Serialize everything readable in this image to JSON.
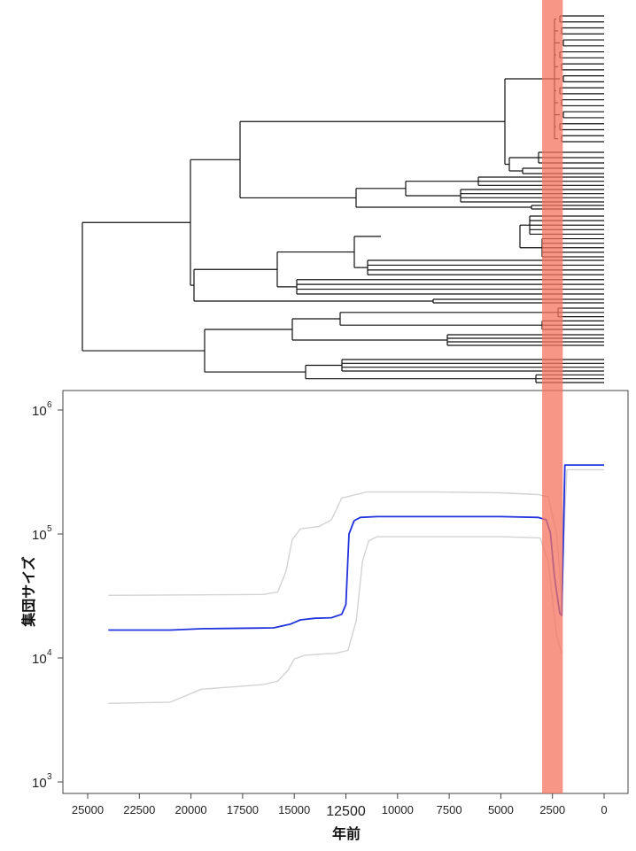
{
  "chart_data": [
    {
      "type": "tree",
      "description_free": true,
      "tips": 52
    },
    {
      "type": "line",
      "xlabel": "年前",
      "ylabel": "集団サイズ",
      "xlim": [
        26000,
        -1000
      ],
      "ylim": [
        1000,
        1000000
      ],
      "yscale": "log",
      "xticks": [
        {
          "value": 25000,
          "label": "25000"
        },
        {
          "value": 22500,
          "label": "22500"
        },
        {
          "value": 20000,
          "label": "20000"
        },
        {
          "value": 17500,
          "label": "17500"
        },
        {
          "value": 15000,
          "label": "15000"
        },
        {
          "value": 12500,
          "label": "12500"
        },
        {
          "value": 10000,
          "label": "10000"
        },
        {
          "value": 7500,
          "label": "7500"
        },
        {
          "value": 5000,
          "label": "5000"
        },
        {
          "value": 2500,
          "label": "2500"
        },
        {
          "value": 0,
          "label": "0"
        }
      ],
      "yticks": [
        {
          "value": 1000,
          "base": "10",
          "exp": "3"
        },
        {
          "value": 10000,
          "base": "10",
          "exp": "4"
        },
        {
          "value": 100000,
          "base": "10",
          "exp": "5"
        },
        {
          "value": 1000000,
          "base": "10",
          "exp": "6"
        }
      ],
      "highlight_band": {
        "from": 3000,
        "to": 2000,
        "color": "#f4735f"
      },
      "series": [
        {
          "role": "median",
          "color": "#2233dd",
          "x": [
            24000,
            21000,
            19500,
            17000,
            16000,
            15200,
            14700,
            14000,
            13200,
            12700,
            12500,
            12350,
            12100,
            11800,
            11000,
            8000,
            5000,
            3200,
            2800,
            2600,
            2400,
            2150,
            2050,
            1900,
            0
          ],
          "y": [
            16800,
            16800,
            17200,
            17400,
            17500,
            18700,
            20300,
            20900,
            21100,
            22500,
            27000,
            100000,
            128000,
            136000,
            138000,
            138000,
            138000,
            136000,
            130000,
            102000,
            45000,
            23000,
            22000,
            360000,
            360000
          ]
        },
        {
          "role": "upper",
          "color": "#d3d3d3",
          "x": [
            24000,
            16500,
            15800,
            15400,
            15100,
            14700,
            13800,
            13200,
            12700,
            11500,
            8000,
            5000,
            3200,
            2700,
            2300,
            2050,
            1900,
            1800,
            1500,
            0
          ],
          "y": [
            32000,
            32500,
            34000,
            50000,
            90000,
            110000,
            115000,
            130000,
            195000,
            218000,
            218000,
            215000,
            208000,
            200000,
            100000,
            30000,
            150000,
            330000,
            330000,
            330000
          ]
        },
        {
          "role": "lower",
          "color": "#d3d3d3",
          "x": [
            24000,
            21000,
            19500,
            16500,
            15800,
            15300,
            15000,
            14500,
            13500,
            13000,
            12400,
            12000,
            11700,
            11400,
            11000,
            8000,
            5000,
            3100,
            2700,
            2300,
            2050
          ],
          "y": [
            4300,
            4400,
            5600,
            6100,
            6500,
            8000,
            9800,
            10500,
            10800,
            10900,
            11500,
            20000,
            60000,
            88000,
            95000,
            95000,
            95000,
            93000,
            60000,
            15000,
            11000
          ]
        }
      ]
    }
  ]
}
